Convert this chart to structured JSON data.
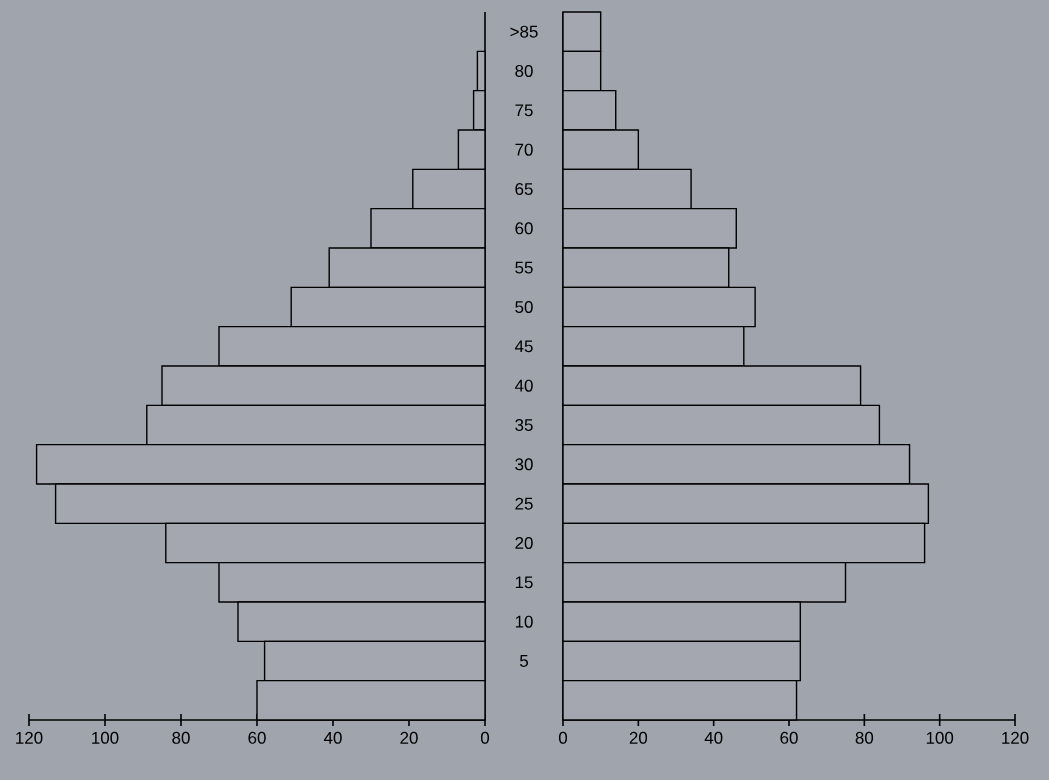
{
  "chart_data": [
    {
      "type": "bar",
      "orientation": "horizontal",
      "categories": [
        null,
        null,
        null,
        null,
        null,
        null,
        null,
        null,
        null,
        null,
        null,
        null,
        null,
        null,
        null,
        null,
        null,
        null
      ],
      "values": [
        null,
        2,
        3,
        7,
        19,
        30,
        41,
        51,
        70,
        85,
        89,
        118,
        113,
        84,
        70,
        65,
        58,
        60
      ],
      "color": "#a4a7b0",
      "xlim": [
        120,
        0
      ],
      "xticks": [
        120,
        100,
        80,
        60,
        40,
        20,
        0
      ]
    },
    {
      "type": "bar",
      "orientation": "horizontal",
      "categories": [
        ">85",
        "80",
        "75",
        "70",
        "65",
        "60",
        "55",
        "50",
        "45",
        "40",
        "35",
        "30",
        "25",
        "20",
        "15",
        "10",
        "5",
        null
      ],
      "values": [
        10,
        10,
        14,
        20,
        34,
        46,
        44,
        51,
        48,
        79,
        84,
        92,
        97,
        96,
        75,
        63,
        63,
        62
      ],
      "color": "#a4a7b0",
      "xlim": [
        0,
        120
      ],
      "xticks": [
        0,
        20,
        40,
        60,
        80,
        100,
        120
      ]
    }
  ]
}
